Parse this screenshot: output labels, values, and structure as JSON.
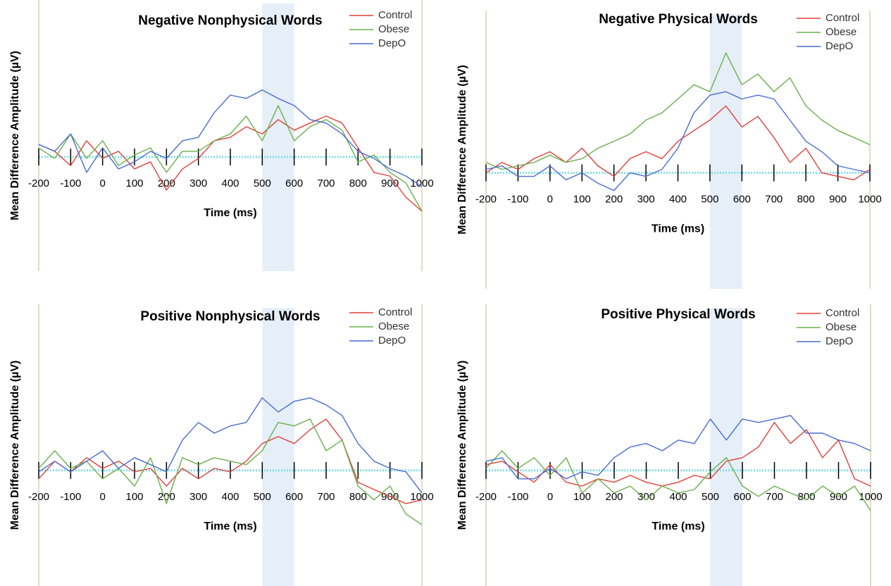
{
  "chart_data": [
    {
      "type": "line",
      "title": "Negative Nonphysical Words",
      "x_label": "Time (ms)",
      "y_label": "Mean Difference Amplitude (µV)",
      "xlim": [
        -200,
        1000
      ],
      "xticks": [
        -200,
        -100,
        0,
        100,
        200,
        300,
        400,
        500,
        600,
        700,
        800,
        900,
        1000
      ],
      "ylim": [
        -4,
        5.5
      ],
      "highlight": [
        500,
        600
      ],
      "legend": "top right",
      "x": [
        -200,
        -150,
        -100,
        -50,
        0,
        50,
        100,
        150,
        200,
        250,
        300,
        350,
        400,
        450,
        500,
        550,
        600,
        650,
        700,
        750,
        800,
        850,
        900,
        950,
        1000
      ],
      "series": [
        {
          "name": "Control",
          "color": "#e0403a",
          "values": [
            0.44,
            0.2,
            -0.3,
            0.57,
            -0.05,
            0.2,
            -0.42,
            -0.17,
            -1.16,
            -0.42,
            -0.05,
            0.57,
            0.69,
            1.06,
            0.81,
            1.31,
            0.94,
            1.19,
            1.43,
            1.19,
            0.32,
            -0.54,
            -0.67,
            -1.41,
            -1.9
          ]
        },
        {
          "name": "Obese",
          "color": "#6ab04c",
          "values": [
            0.32,
            -0.05,
            0.81,
            -0.05,
            0.57,
            -0.3,
            0.07,
            0.32,
            -0.54,
            0.2,
            0.2,
            0.57,
            0.81,
            1.43,
            0.57,
            1.8,
            0.57,
            1.06,
            1.31,
            0.94,
            -0.17,
            0.07,
            -0.54,
            -0.91,
            -1.9
          ]
        },
        {
          "name": "DepO",
          "color": "#4a6cd4",
          "values": [
            0.44,
            0.2,
            0.81,
            -0.54,
            0.32,
            -0.42,
            -0.17,
            0.2,
            -0.05,
            0.57,
            0.69,
            1.56,
            2.17,
            2.05,
            2.35,
            2.05,
            1.8,
            1.31,
            1.19,
            0.81,
            0.2,
            -0.05,
            -0.42,
            -0.67,
            -1.04
          ]
        }
      ]
    },
    {
      "type": "line",
      "title": "Negative Physical Words",
      "x_label": "Time (ms)",
      "y_label": "Mean Difference Amplitude (µV)",
      "xlim": [
        -200,
        1000
      ],
      "xticks": [
        -200,
        -100,
        0,
        100,
        200,
        300,
        400,
        500,
        600,
        700,
        800,
        900,
        1000
      ],
      "ylim": [
        -4,
        5.6
      ],
      "highlight": [
        500,
        600
      ],
      "legend": "top right",
      "x": [
        -200,
        -150,
        -100,
        -50,
        0,
        50,
        100,
        150,
        200,
        250,
        300,
        350,
        400,
        450,
        500,
        550,
        600,
        650,
        700,
        750,
        800,
        850,
        900,
        950,
        1000
      ],
      "series": [
        {
          "name": "Control",
          "color": "#e0403a",
          "values": [
            0,
            0.36,
            0.12,
            0.49,
            0.73,
            0.36,
            0.85,
            0.24,
            -0.12,
            0.49,
            0.73,
            0.49,
            1.09,
            1.46,
            1.82,
            2.31,
            1.58,
            1.95,
            1.22,
            0.36,
            0.85,
            0,
            -0.12,
            -0.24,
            0.12
          ]
        },
        {
          "name": "Obese",
          "color": "#6ab04c",
          "values": [
            0.36,
            0.12,
            0.24,
            0.36,
            0.61,
            0.36,
            0.49,
            0.85,
            1.09,
            1.34,
            1.82,
            2.07,
            2.55,
            3.04,
            2.8,
            4.14,
            3.04,
            3.41,
            2.8,
            3.28,
            2.31,
            1.82,
            1.46,
            1.22,
            0.97
          ]
        },
        {
          "name": "DepO",
          "color": "#4a6cd4",
          "values": [
            0.12,
            0.24,
            -0.12,
            -0.12,
            0.24,
            -0.24,
            0,
            -0.36,
            -0.61,
            0,
            -0.12,
            0.12,
            0.85,
            2.07,
            2.68,
            2.8,
            2.55,
            2.68,
            2.55,
            1.82,
            1.09,
            0.73,
            0.24,
            0.12,
            0
          ]
        }
      ]
    },
    {
      "type": "line",
      "title": "Positive Nonphysical Words",
      "x_label": "Time (ms)",
      "y_label": "Mean Difference Amplitude (µV)",
      "xlim": [
        -200,
        1000
      ],
      "xticks": [
        -200,
        -100,
        0,
        100,
        200,
        300,
        400,
        500,
        600,
        700,
        800,
        900,
        1000
      ],
      "ylim": [
        -4,
        5.75
      ],
      "highlight": [
        500,
        600
      ],
      "legend": "top right",
      "x": [
        -200,
        -150,
        -100,
        -50,
        0,
        50,
        100,
        150,
        200,
        250,
        300,
        350,
        400,
        450,
        500,
        550,
        600,
        650,
        700,
        750,
        800,
        850,
        900,
        950,
        1000
      ],
      "series": [
        {
          "name": "Control",
          "color": "#e0403a",
          "values": [
            -0.29,
            0.32,
            -0.05,
            0.44,
            0.07,
            0.32,
            -0.05,
            0.07,
            -0.54,
            0.07,
            -0.29,
            0.07,
            -0.05,
            0.32,
            0.93,
            1.17,
            0.93,
            1.41,
            1.78,
            1.05,
            -0.41,
            -0.66,
            -0.9,
            -1.15,
            -1.02
          ]
        },
        {
          "name": "Obese",
          "color": "#6ab04c",
          "values": [
            0.07,
            0.68,
            0.07,
            0.32,
            -0.29,
            0.07,
            -0.54,
            0.44,
            -1.15,
            0.44,
            0.2,
            0.44,
            0.32,
            0.2,
            0.68,
            1.66,
            1.54,
            1.78,
            0.68,
            1.05,
            -0.54,
            -1.02,
            -0.54,
            -1.51,
            -1.88
          ]
        },
        {
          "name": "DepO",
          "color": "#4a6cd4",
          "values": [
            -0.05,
            0.32,
            -0.05,
            0.32,
            0.68,
            0.07,
            0.44,
            0.2,
            -0.05,
            1.05,
            1.66,
            1.29,
            1.54,
            1.66,
            2.51,
            2.02,
            2.39,
            2.51,
            2.27,
            1.9,
            0.93,
            0.32,
            0.07,
            -0.05,
            -0.78
          ]
        }
      ]
    },
    {
      "type": "line",
      "title": "Positive Physical Words",
      "x_label": "Time (ms)",
      "y_label": "Mean Difference Amplitude (µV)",
      "xlim": [
        -200,
        1000
      ],
      "xticks": [
        -200,
        -100,
        0,
        100,
        200,
        300,
        400,
        500,
        600,
        700,
        800,
        900,
        1000
      ],
      "ylim": [
        -4,
        5.75
      ],
      "highlight": [
        500,
        600
      ],
      "legend": "top right",
      "x": [
        -200,
        -150,
        -100,
        -50,
        0,
        50,
        100,
        150,
        200,
        250,
        300,
        350,
        400,
        450,
        500,
        550,
        600,
        650,
        700,
        750,
        800,
        850,
        900,
        950,
        1000
      ],
      "series": [
        {
          "name": "Control",
          "color": "#e0403a",
          "values": [
            0.2,
            0.32,
            -0.05,
            -0.41,
            0.2,
            -0.41,
            -0.54,
            -0.29,
            -0.41,
            -0.17,
            -0.41,
            -0.54,
            -0.41,
            -0.17,
            -0.29,
            0.32,
            0.44,
            0.81,
            1.66,
            0.93,
            1.41,
            0.44,
            1.05,
            -0.29,
            -0.54
          ]
        },
        {
          "name": "Obese",
          "color": "#6ab04c",
          "values": [
            0.07,
            0.68,
            0.07,
            0.44,
            -0.17,
            0.44,
            -0.78,
            -0.29,
            -0.78,
            -0.54,
            -1.02,
            -0.54,
            -0.78,
            -0.66,
            -0.05,
            0.44,
            -0.54,
            -0.9,
            -0.54,
            -0.78,
            -1.02,
            -0.54,
            -0.9,
            -0.54,
            -1.39
          ]
        },
        {
          "name": "DepO",
          "color": "#4a6cd4",
          "values": [
            0.32,
            0.44,
            -0.29,
            -0.29,
            0.07,
            -0.29,
            -0.05,
            -0.17,
            0.44,
            0.81,
            0.93,
            0.68,
            1.05,
            0.93,
            1.78,
            1.05,
            1.78,
            1.66,
            1.78,
            1.9,
            1.29,
            1.29,
            1.05,
            0.93,
            0.68
          ]
        }
      ]
    }
  ]
}
